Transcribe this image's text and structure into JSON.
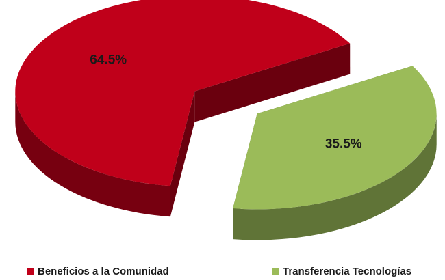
{
  "chart_data": {
    "type": "pie3d",
    "categories": [
      "Beneficios a la Comunidad",
      "Transferencia Tecnologías"
    ],
    "values": [
      64.5,
      35.5
    ],
    "value_labels": [
      "64.5%",
      "35.5%"
    ],
    "colors": [
      "#c0001a",
      "#9bbb59"
    ],
    "legend": "bottom"
  }
}
